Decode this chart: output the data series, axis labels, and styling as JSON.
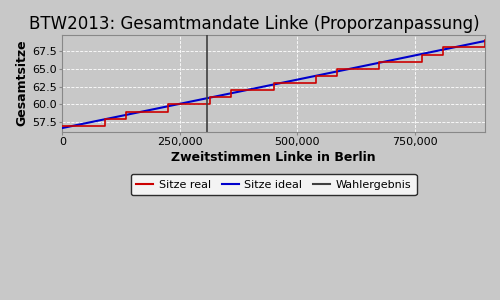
{
  "title": "BTW2013: Gesamtmandate Linke (Proporzanpassung)",
  "xlabel": "Zweitstimmen Linke in Berlin",
  "ylabel": "Gesamtsitze",
  "bg_color": "#c8c8c8",
  "plot_bg_color": "#c8c8c8",
  "x_min": 0,
  "x_max": 900000,
  "y_min": 56.2,
  "y_max": 69.8,
  "wahlergebnis_x": 308000,
  "y_start": 56.7,
  "y_end": 68.9,
  "x_ticks": [
    0,
    250000,
    500000,
    750000
  ],
  "y_ticks": [
    57.5,
    60.0,
    62.5,
    65.0,
    67.5
  ],
  "n_steps": 20,
  "legend_labels": [
    "Sitze real",
    "Sitze ideal",
    "Wahlergebnis"
  ],
  "legend_colors": [
    "#cc0000",
    "#0000cc",
    "#404040"
  ],
  "title_fontsize": 12,
  "axis_fontsize": 9,
  "tick_fontsize": 8
}
